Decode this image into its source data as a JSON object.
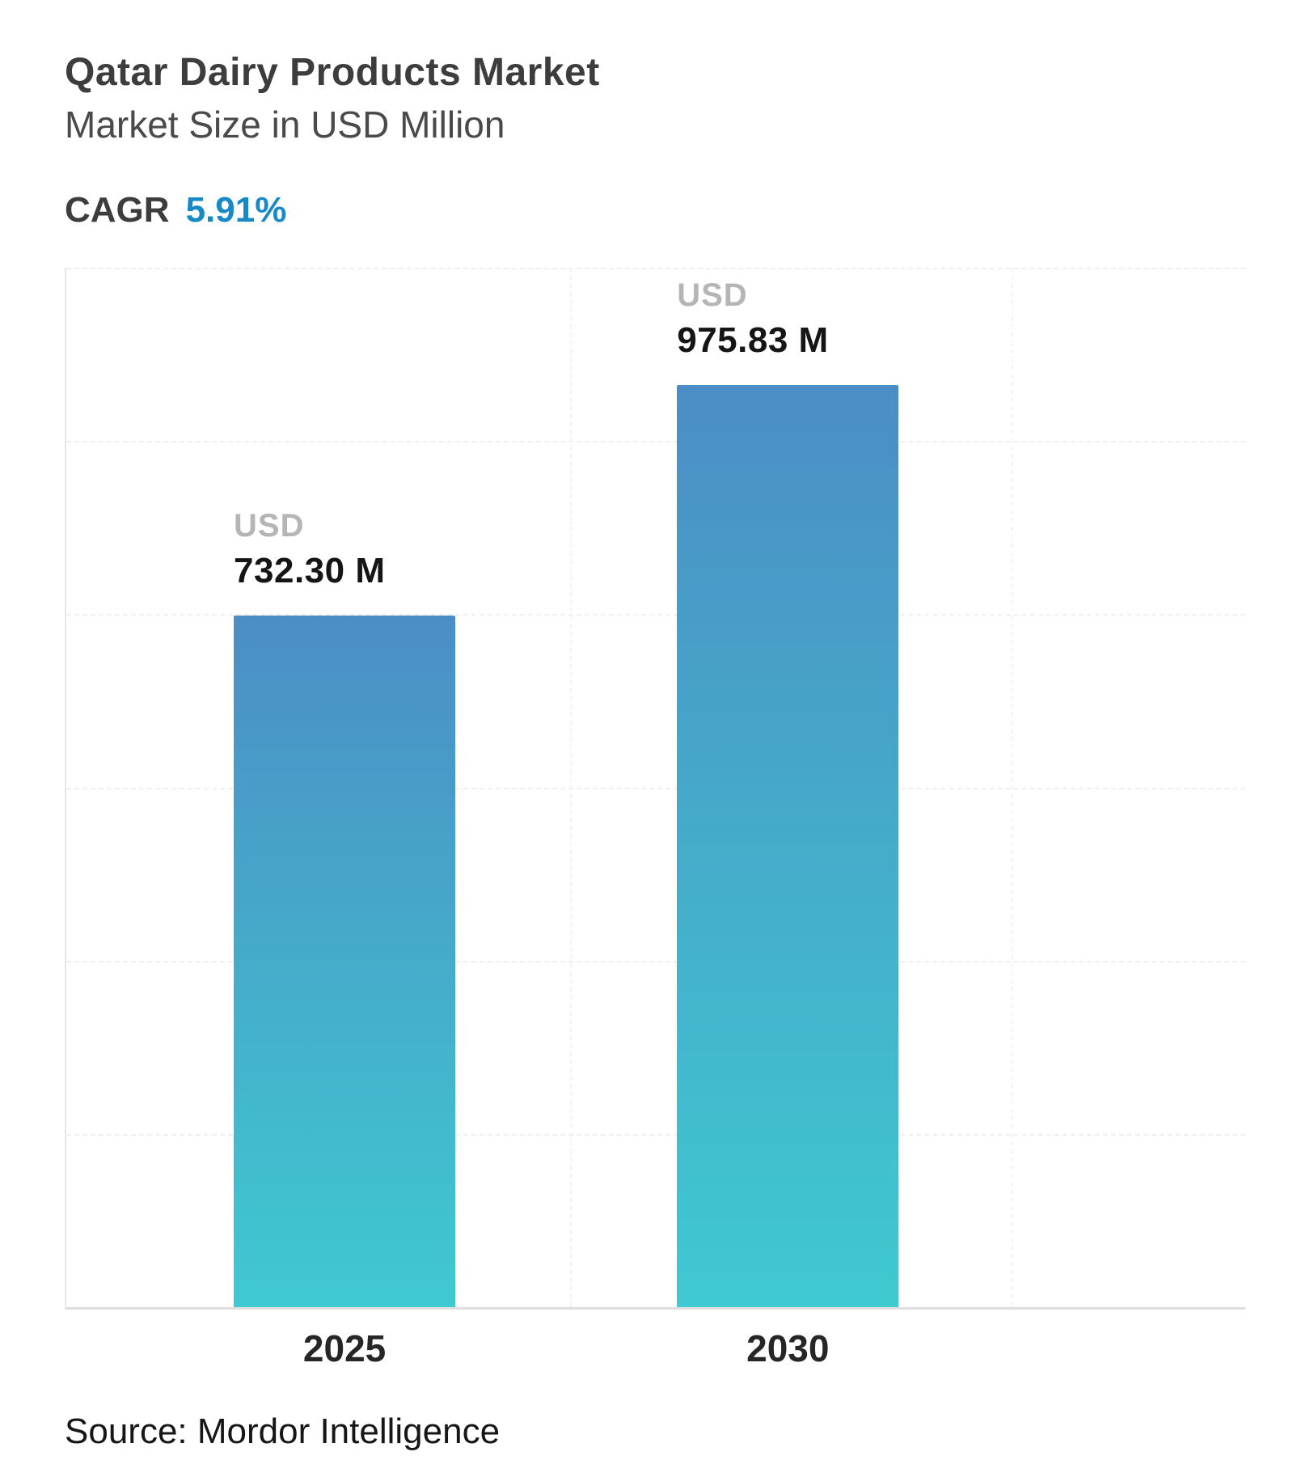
{
  "header": {
    "title": "Qatar Dairy Products Market",
    "subtitle": "Market Size in USD Million",
    "cagr_label": "CAGR",
    "cagr_value": "5.91%"
  },
  "chart_data": {
    "type": "bar",
    "title": "Qatar Dairy Products Market",
    "subtitle": "Market Size in USD Million",
    "cagr": "5.91%",
    "categories": [
      "2025",
      "2030"
    ],
    "values": [
      732.3,
      975.83
    ],
    "value_labels": [
      {
        "currency": "USD",
        "amount": "732.30 M"
      },
      {
        "currency": "USD",
        "amount": "975.83 M"
      }
    ],
    "xlabel": "",
    "ylabel": "Market Size in USD Million",
    "ylim": [
      0,
      1100
    ],
    "grid": "dashed-horizontal",
    "legend": "none",
    "bar_gradient_top": "#4B8EC5",
    "bar_gradient_bottom": "#3FC9D0",
    "accent_color": "#1789C7"
  },
  "footer": {
    "source": "Source: Mordor Intelligence"
  }
}
